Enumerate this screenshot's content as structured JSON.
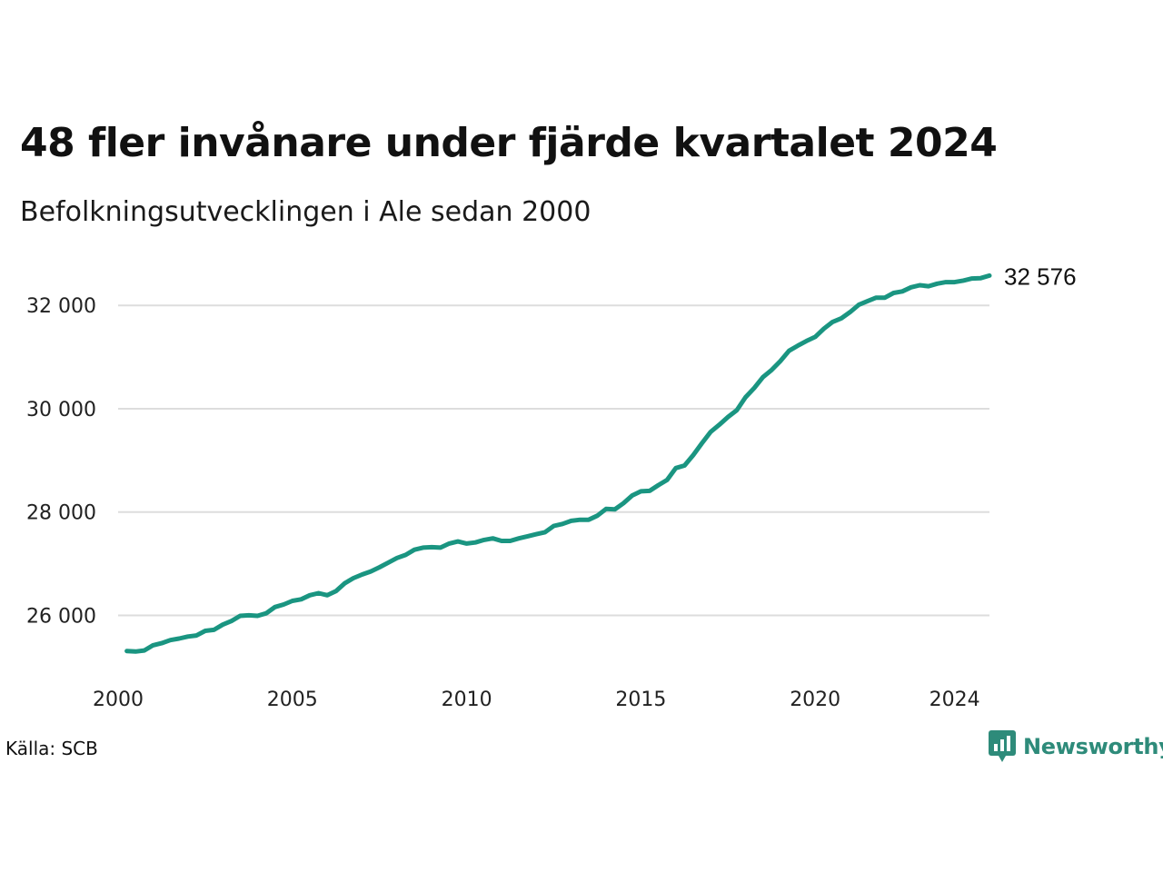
{
  "header": {
    "title": "48 fler invånare under fjärde kvartalet 2024",
    "subtitle": "Befolkningsutvecklingen i Ale sedan 2000"
  },
  "footer": {
    "source": "Källa: SCB",
    "brand": "Newsworthy",
    "brand_icon": "bar-chart-badge-icon"
  },
  "colors": {
    "line": "#1a9581",
    "grid": "#dddddd",
    "brand": "#2e8b7a"
  },
  "chart_data": {
    "type": "line",
    "title": "48 fler invånare under fjärde kvartalet 2024",
    "subtitle": "Befolkningsutvecklingen i Ale sedan 2000",
    "xlabel": "",
    "ylabel": "",
    "xlim": [
      2000,
      2025
    ],
    "ylim": [
      24900,
      32900
    ],
    "y_ticks": [
      26000,
      28000,
      30000,
      32000
    ],
    "y_tick_labels": [
      "26 000",
      "28 000",
      "30 000",
      "32 000"
    ],
    "x_ticks": [
      2000,
      2005,
      2010,
      2015,
      2020,
      2024
    ],
    "x_tick_labels": [
      "2000",
      "2005",
      "2010",
      "2015",
      "2020",
      "2024"
    ],
    "grid": "horizontal",
    "end_label": "32 576",
    "series": [
      {
        "points": [
          [
            2000.25,
            25310
          ],
          [
            2000.5,
            25300
          ],
          [
            2000.75,
            25320
          ],
          [
            2001.0,
            25420
          ],
          [
            2001.25,
            25460
          ],
          [
            2001.5,
            25520
          ],
          [
            2001.75,
            25550
          ],
          [
            2002.0,
            25590
          ],
          [
            2002.25,
            25610
          ],
          [
            2002.5,
            25700
          ],
          [
            2002.75,
            25720
          ],
          [
            2003.0,
            25820
          ],
          [
            2003.25,
            25890
          ],
          [
            2003.5,
            25990
          ],
          [
            2003.75,
            26000
          ],
          [
            2004.0,
            25990
          ],
          [
            2004.25,
            26040
          ],
          [
            2004.5,
            26160
          ],
          [
            2004.75,
            26210
          ],
          [
            2005.0,
            26280
          ],
          [
            2005.25,
            26310
          ],
          [
            2005.5,
            26390
          ],
          [
            2005.75,
            26430
          ],
          [
            2006.0,
            26390
          ],
          [
            2006.25,
            26470
          ],
          [
            2006.5,
            26620
          ],
          [
            2006.75,
            26720
          ],
          [
            2007.0,
            26790
          ],
          [
            2007.25,
            26850
          ],
          [
            2007.5,
            26930
          ],
          [
            2007.75,
            27020
          ],
          [
            2008.0,
            27110
          ],
          [
            2008.25,
            27170
          ],
          [
            2008.5,
            27270
          ],
          [
            2008.75,
            27310
          ],
          [
            2009.0,
            27320
          ],
          [
            2009.25,
            27310
          ],
          [
            2009.5,
            27390
          ],
          [
            2009.75,
            27430
          ],
          [
            2010.0,
            27390
          ],
          [
            2010.25,
            27410
          ],
          [
            2010.5,
            27460
          ],
          [
            2010.75,
            27490
          ],
          [
            2011.0,
            27440
          ],
          [
            2011.25,
            27440
          ],
          [
            2011.5,
            27490
          ],
          [
            2011.75,
            27530
          ],
          [
            2012.0,
            27570
          ],
          [
            2012.25,
            27610
          ],
          [
            2012.5,
            27730
          ],
          [
            2012.75,
            27770
          ],
          [
            2013.0,
            27830
          ],
          [
            2013.25,
            27850
          ],
          [
            2013.5,
            27850
          ],
          [
            2013.75,
            27930
          ],
          [
            2014.0,
            28060
          ],
          [
            2014.25,
            28050
          ],
          [
            2014.5,
            28170
          ],
          [
            2014.75,
            28320
          ],
          [
            2015.0,
            28400
          ],
          [
            2015.25,
            28410
          ],
          [
            2015.5,
            28520
          ],
          [
            2015.75,
            28620
          ],
          [
            2016.0,
            28850
          ],
          [
            2016.25,
            28900
          ],
          [
            2016.5,
            29100
          ],
          [
            2016.75,
            29330
          ],
          [
            2017.0,
            29550
          ],
          [
            2017.25,
            29690
          ],
          [
            2017.5,
            29840
          ],
          [
            2017.75,
            29970
          ],
          [
            2018.0,
            30220
          ],
          [
            2018.25,
            30400
          ],
          [
            2018.5,
            30610
          ],
          [
            2018.75,
            30750
          ],
          [
            2019.0,
            30920
          ],
          [
            2019.25,
            31120
          ],
          [
            2019.5,
            31220
          ],
          [
            2019.75,
            31310
          ],
          [
            2020.0,
            31390
          ],
          [
            2020.25,
            31550
          ],
          [
            2020.5,
            31680
          ],
          [
            2020.75,
            31750
          ],
          [
            2021.0,
            31870
          ],
          [
            2021.25,
            32010
          ],
          [
            2021.5,
            32080
          ],
          [
            2021.75,
            32150
          ],
          [
            2022.0,
            32150
          ],
          [
            2022.25,
            32240
          ],
          [
            2022.5,
            32270
          ],
          [
            2022.75,
            32350
          ],
          [
            2023.0,
            32390
          ],
          [
            2023.25,
            32370
          ],
          [
            2023.5,
            32420
          ],
          [
            2023.75,
            32450
          ],
          [
            2024.0,
            32450
          ],
          [
            2024.25,
            32480
          ],
          [
            2024.5,
            32520
          ],
          [
            2024.75,
            32528
          ],
          [
            2025.0,
            32576
          ]
        ]
      }
    ]
  }
}
